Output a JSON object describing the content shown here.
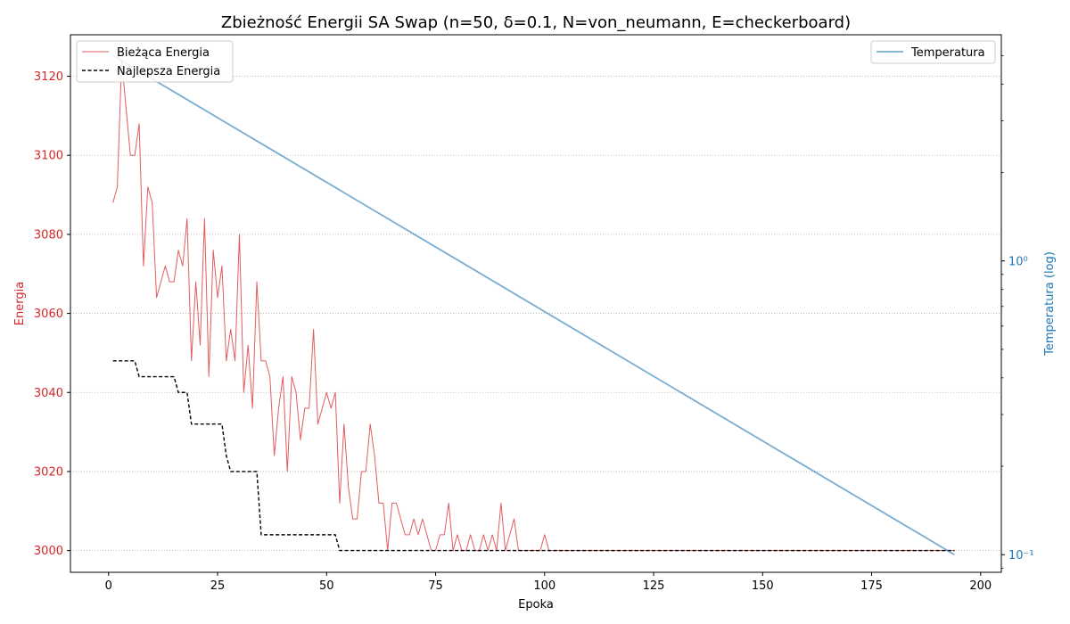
{
  "chart_data": {
    "type": "line",
    "title": "Zbieżność Energii SA Swap (n=50, δ=0.1, N=von_neumann, E=checkerboard)",
    "xlabel": "Epoka",
    "ylabel_left": "Energia",
    "ylabel_right": "Temperatura (log)",
    "xlim": [
      -8.75,
      204.75
    ],
    "ylim_left": [
      2994.5,
      3130.5
    ],
    "ylim_right_log10": [
      -1.06,
      0.77
    ],
    "x_ticks": [
      0,
      25,
      50,
      75,
      100,
      125,
      150,
      175,
      200
    ],
    "x_tick_labels": [
      "0",
      "25",
      "50",
      "75",
      "100",
      "125",
      "150",
      "175",
      "200"
    ],
    "y_left_ticks": [
      3000,
      3020,
      3040,
      3060,
      3080,
      3100,
      3120
    ],
    "y_left_tick_labels": [
      "3000",
      "3020",
      "3040",
      "3060",
      "3080",
      "3100",
      "3120"
    ],
    "y_right_major_ticks": [
      0.1,
      1
    ],
    "y_right_tick_labels": [
      "10⁻¹",
      "10⁰"
    ],
    "grid": "horizontal-dotted",
    "colors": {
      "current": "#d62728",
      "best": "#000000",
      "temperature": "#1f77b4",
      "left_axis": "#d62728",
      "right_axis": "#1f77b4",
      "grid": "#b0b0b0"
    },
    "legend_left": {
      "placement": "upper-left",
      "entries": [
        "Bieżąca Energia",
        "Najlepsza Energia"
      ]
    },
    "legend_right": {
      "placement": "upper-right",
      "entries": [
        "Temperatura"
      ]
    },
    "series": [
      {
        "name": "Bieżąca Energia",
        "axis": "left",
        "style": "solid",
        "points": [
          [
            1,
            3088
          ],
          [
            2,
            3092
          ],
          [
            3,
            3124
          ],
          [
            4,
            3112
          ],
          [
            5,
            3100
          ],
          [
            6,
            3100
          ],
          [
            7,
            3108
          ],
          [
            8,
            3072
          ],
          [
            9,
            3092
          ],
          [
            10,
            3088
          ],
          [
            11,
            3064
          ],
          [
            12,
            3068
          ],
          [
            13,
            3072
          ],
          [
            14,
            3068
          ],
          [
            15,
            3068
          ],
          [
            16,
            3076
          ],
          [
            17,
            3072
          ],
          [
            18,
            3084
          ],
          [
            19,
            3048
          ],
          [
            20,
            3068
          ],
          [
            21,
            3052
          ],
          [
            22,
            3084
          ],
          [
            23,
            3044
          ],
          [
            24,
            3076
          ],
          [
            25,
            3064
          ],
          [
            26,
            3072
          ],
          [
            27,
            3048
          ],
          [
            28,
            3056
          ],
          [
            29,
            3048
          ],
          [
            30,
            3080
          ],
          [
            31,
            3040
          ],
          [
            32,
            3052
          ],
          [
            33,
            3036
          ],
          [
            34,
            3068
          ],
          [
            35,
            3048
          ],
          [
            36,
            3048
          ],
          [
            37,
            3044
          ],
          [
            38,
            3024
          ],
          [
            39,
            3036
          ],
          [
            40,
            3044
          ],
          [
            41,
            3020
          ],
          [
            42,
            3044
          ],
          [
            43,
            3040
          ],
          [
            44,
            3028
          ],
          [
            45,
            3036
          ],
          [
            46,
            3036
          ],
          [
            47,
            3056
          ],
          [
            48,
            3032
          ],
          [
            49,
            3036
          ],
          [
            50,
            3040
          ],
          [
            51,
            3036
          ],
          [
            52,
            3040
          ],
          [
            53,
            3012
          ],
          [
            54,
            3032
          ],
          [
            55,
            3016
          ],
          [
            56,
            3008
          ],
          [
            57,
            3008
          ],
          [
            58,
            3020
          ],
          [
            59,
            3020
          ],
          [
            60,
            3032
          ],
          [
            61,
            3024
          ],
          [
            62,
            3012
          ],
          [
            63,
            3012
          ],
          [
            64,
            3000
          ],
          [
            65,
            3012
          ],
          [
            66,
            3012
          ],
          [
            67,
            3008
          ],
          [
            68,
            3004
          ],
          [
            69,
            3004
          ],
          [
            70,
            3008
          ],
          [
            71,
            3004
          ],
          [
            72,
            3008
          ],
          [
            73,
            3004
          ],
          [
            74,
            3000
          ],
          [
            75,
            3000
          ],
          [
            76,
            3004
          ],
          [
            77,
            3004
          ],
          [
            78,
            3012
          ],
          [
            79,
            3000
          ],
          [
            80,
            3004
          ],
          [
            81,
            3000
          ],
          [
            82,
            3000
          ],
          [
            83,
            3004
          ],
          [
            84,
            3000
          ],
          [
            85,
            3000
          ],
          [
            86,
            3004
          ],
          [
            87,
            3000
          ],
          [
            88,
            3004
          ],
          [
            89,
            3000
          ],
          [
            90,
            3012
          ],
          [
            91,
            3000
          ],
          [
            92,
            3004
          ],
          [
            93,
            3008
          ],
          [
            94,
            3000
          ],
          [
            95,
            3000
          ],
          [
            96,
            3000
          ],
          [
            97,
            3000
          ],
          [
            98,
            3000
          ],
          [
            99,
            3000
          ],
          [
            100,
            3004
          ],
          [
            101,
            3000
          ],
          [
            102,
            3000
          ],
          [
            194,
            3000
          ]
        ]
      },
      {
        "name": "Najlepsza Energia",
        "axis": "left",
        "style": "dashed",
        "points": [
          [
            1,
            3048
          ],
          [
            6,
            3048
          ],
          [
            7,
            3044
          ],
          [
            15,
            3044
          ],
          [
            16,
            3040
          ],
          [
            18,
            3040
          ],
          [
            19,
            3032
          ],
          [
            26,
            3032
          ],
          [
            27,
            3024
          ],
          [
            28,
            3020
          ],
          [
            34,
            3020
          ],
          [
            35,
            3004
          ],
          [
            52,
            3004
          ],
          [
            53,
            3000
          ],
          [
            194,
            3000
          ]
        ]
      },
      {
        "name": "Temperatura",
        "axis": "right",
        "scale": "log",
        "style": "solid",
        "points": [
          [
            1,
            5.0
          ],
          [
            194,
            0.1
          ]
        ]
      }
    ]
  }
}
